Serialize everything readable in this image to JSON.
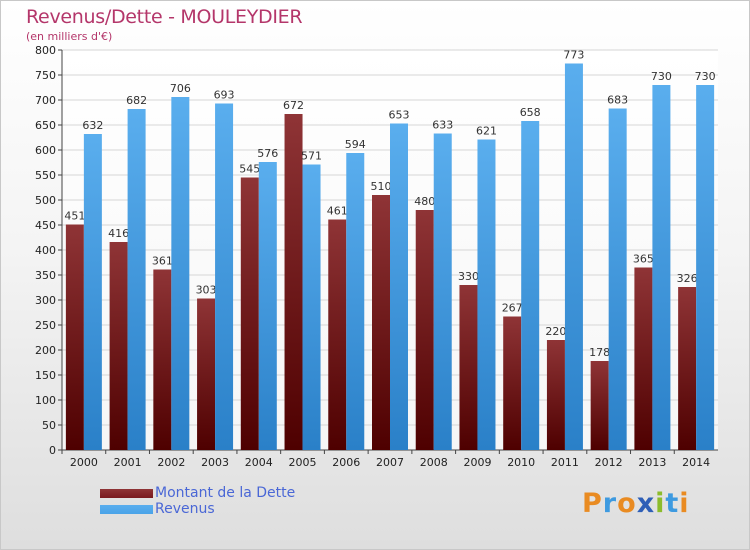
{
  "title": "Revenus/Dette - MOULEYDIER",
  "subtitle": "(en milliers d'€)",
  "logo_text": "Proxiti",
  "logo_colors": [
    "#e98b22",
    "#3d9ae0",
    "#e98b22",
    "#2f5fb7",
    "#8cbc2c",
    "#3d9ae0",
    "#e98b22"
  ],
  "chart_data": {
    "type": "bar",
    "categories": [
      "2000",
      "2001",
      "2002",
      "2003",
      "2004",
      "2005",
      "2006",
      "2007",
      "2008",
      "2009",
      "2010",
      "2011",
      "2012",
      "2013",
      "2014"
    ],
    "series": [
      {
        "name": "Montant de la Dette",
        "color": "#7a1a1e",
        "values": [
          451,
          416,
          361,
          303,
          545,
          672,
          461,
          510,
          480,
          330,
          267,
          220,
          178,
          365,
          326
        ]
      },
      {
        "name": "Revenus",
        "color": "#4aa3e8",
        "values": [
          632,
          682,
          706,
          693,
          576,
          571,
          594,
          653,
          633,
          621,
          658,
          773,
          683,
          730,
          730
        ]
      }
    ],
    "ylim": [
      0,
      800
    ],
    "ytick_step": 50,
    "grid": true,
    "legend_position": "bottom-left"
  }
}
